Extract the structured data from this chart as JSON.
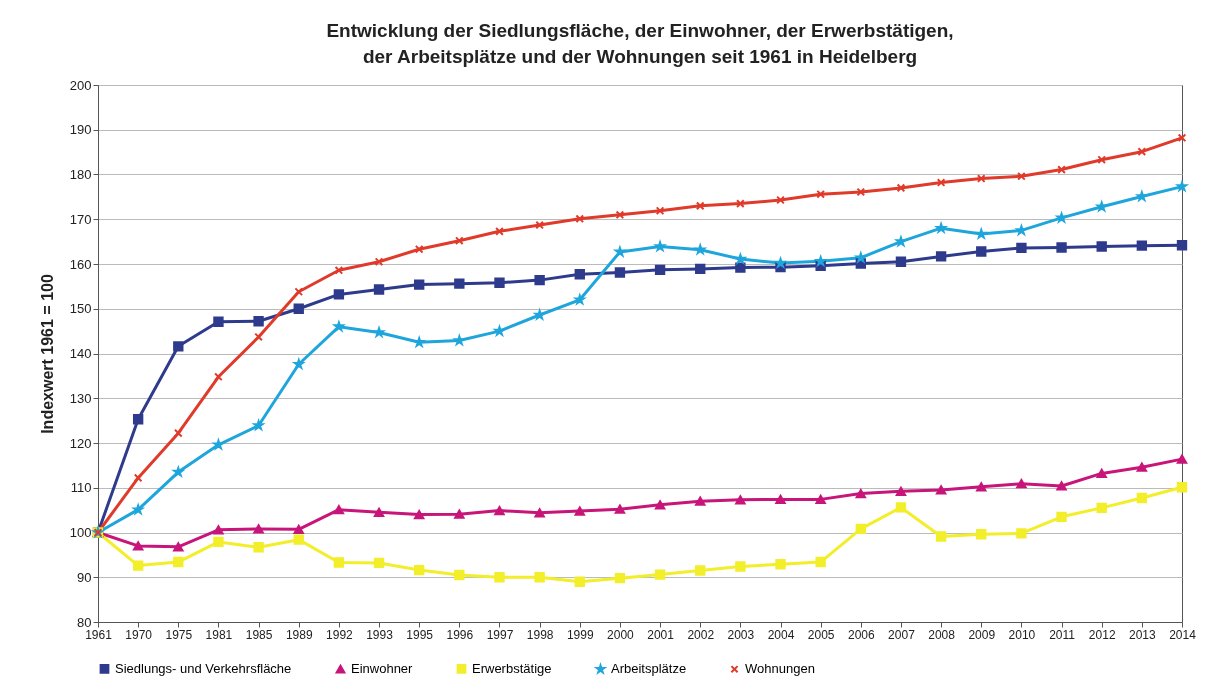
{
  "chart_data": {
    "type": "line",
    "title": [
      "Entwicklung der Siedlungsfläche, der Einwohner, der Erwerbstätigen,",
      "der Arbeitsplätze und der Wohnungen seit 1961 in Heidelberg"
    ],
    "ylabel": "Indexwert 1961 = 100",
    "categories": [
      "1961",
      "1970",
      "1975",
      "1981",
      "1985",
      "1989",
      "1992",
      "1993",
      "1995",
      "1996",
      "1997",
      "1998",
      "1999",
      "2000",
      "2001",
      "2002",
      "2003",
      "2004",
      "2005",
      "2006",
      "2007",
      "2008",
      "2009",
      "2010",
      "2011",
      "2012",
      "2013",
      "2014"
    ],
    "ylim": [
      80,
      200
    ],
    "yticks": [
      80,
      90,
      100,
      110,
      120,
      130,
      140,
      150,
      160,
      170,
      180,
      190,
      200
    ],
    "grid": "y",
    "legend": "bottom",
    "series": [
      {
        "name": "Siedlungs- und Verkehrsfläche",
        "color": "#2e3a8c",
        "marker": "square",
        "values": [
          100,
          125.3,
          141.6,
          147.1,
          147.2,
          150,
          153.2,
          154.3,
          155.4,
          155.6,
          155.8,
          156.4,
          157.7,
          158.1,
          158.7,
          158.9,
          159.2,
          159.3,
          159.6,
          160.1,
          160.5,
          161.7,
          162.8,
          163.6,
          163.7,
          163.9,
          164.1,
          164.2
        ]
      },
      {
        "name": "Einwohner",
        "color": "#c8157a",
        "marker": "triangle",
        "values": [
          100,
          97,
          96.8,
          100.6,
          100.8,
          100.7,
          105.1,
          104.5,
          104,
          104.1,
          104.9,
          104.4,
          104.8,
          105.2,
          106.2,
          107,
          107.3,
          107.4,
          107.4,
          108.7,
          109.2,
          109.5,
          110.2,
          110.9,
          110.4,
          113.2,
          114.6,
          116.4
        ]
      },
      {
        "name": "Erwerbstätige",
        "color": "#f2ee2a",
        "marker": "square",
        "values": [
          100,
          92.6,
          93.4,
          97.9,
          96.7,
          98.4,
          93.3,
          93.2,
          91.6,
          90.5,
          90,
          90,
          89,
          89.8,
          90.6,
          91.5,
          92.4,
          92.9,
          93.4,
          100.8,
          105.6,
          99.1,
          99.6,
          99.8,
          103.5,
          105.5,
          107.7,
          110.1
        ]
      },
      {
        "name": "Arbeitsplätze",
        "color": "#1ea6dc",
        "marker": "star",
        "values": [
          100,
          105.1,
          113.5,
          119.6,
          123.9,
          137.6,
          146,
          144.7,
          142.5,
          142.9,
          145,
          148.6,
          152,
          162.7,
          163.9,
          163.2,
          161.1,
          160.2,
          160.6,
          161.4,
          165,
          168,
          166.7,
          167.5,
          170.3,
          172.8,
          175.1,
          177.3
        ]
      },
      {
        "name": "Wohnungen",
        "color": "#e03a2a",
        "marker": "cross",
        "values": [
          100,
          112.2,
          122.2,
          134.8,
          143.7,
          153.8,
          158.6,
          160.5,
          163.3,
          165.2,
          167.3,
          168.7,
          170.1,
          171,
          171.9,
          173,
          173.5,
          174.3,
          175.6,
          176.1,
          177,
          178.2,
          179.1,
          179.6,
          181.1,
          183.3,
          185.1,
          188.2
        ]
      }
    ]
  }
}
